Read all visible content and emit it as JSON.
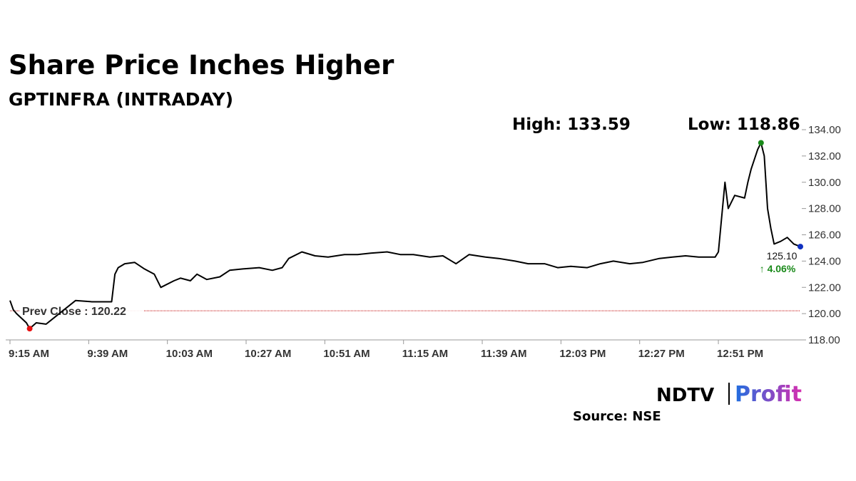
{
  "chart_data": {
    "type": "line",
    "title": "Share Price Inches Higher",
    "subtitle": "GPTINFRA (INTRADAY)",
    "high_label": "High: 133.59",
    "low_label": "Low: 118.86",
    "x": [
      "9:15 AM",
      "9:16 AM",
      "9:17 AM",
      "9:20 AM",
      "9:21 AM",
      "9:23 AM",
      "9:26 AM",
      "9:27 AM",
      "9:35 AM",
      "9:40 AM",
      "9:46 AM",
      "9:47 AM",
      "9:48 AM",
      "9:50 AM",
      "9:53 AM",
      "9:56 AM",
      "9:59 AM",
      "10:01 AM",
      "10:05 AM",
      "10:07 AM",
      "10:10 AM",
      "10:12 AM",
      "10:15 AM",
      "10:19 AM",
      "10:22 AM",
      "10:26 AM",
      "10:31 AM",
      "10:35 AM",
      "10:38 AM",
      "10:40 AM",
      "10:44 AM",
      "10:48 AM",
      "10:52 AM",
      "10:57 AM",
      "11:01 AM",
      "11:05 AM",
      "11:10 AM",
      "11:14 AM",
      "11:18 AM",
      "11:23 AM",
      "11:27 AM",
      "11:31 AM",
      "11:35 AM",
      "11:40 AM",
      "11:44 AM",
      "11:49 AM",
      "11:53 AM",
      "11:58 AM",
      "12:02 PM",
      "12:06 PM",
      "12:11 PM",
      "12:15 PM",
      "12:19 PM",
      "12:24 PM",
      "12:28 PM",
      "12:33 PM",
      "12:37 PM",
      "12:41 PM",
      "12:45 PM",
      "12:50 PM",
      "12:51 PM",
      "12:53 PM",
      "12:54 PM",
      "12:56 PM",
      "12:59 PM",
      "1:00 PM",
      "1:01 PM",
      "1:03 PM",
      "1:04 PM",
      "1:05 PM",
      "1:06 PM",
      "1:07 PM",
      "1:08 PM",
      "1:10 PM",
      "1:12 PM",
      "1:14 PM",
      "1:16 PM"
    ],
    "series": [
      {
        "color": "#000000",
        "values": [
          121.0,
          120.3,
          120.0,
          119.3,
          118.86,
          119.3,
          119.2,
          119.4,
          121.0,
          120.9,
          120.9,
          123.0,
          123.5,
          123.8,
          123.9,
          123.4,
          123.0,
          122.0,
          122.5,
          122.7,
          122.5,
          123.0,
          122.6,
          122.8,
          123.3,
          123.4,
          123.5,
          123.3,
          123.5,
          124.2,
          124.7,
          124.4,
          124.3,
          124.5,
          124.5,
          124.6,
          124.7,
          124.5,
          124.5,
          124.3,
          124.4,
          123.8,
          124.5,
          124.3,
          124.2,
          124.0,
          123.8,
          123.8,
          123.5,
          123.6,
          123.5,
          123.8,
          124.0,
          123.8,
          123.9,
          124.2,
          124.3,
          124.4,
          124.3,
          124.3,
          124.7,
          130.0,
          128.0,
          129.0,
          128.8,
          130.0,
          131.0,
          132.5,
          133.0,
          132.0,
          128.0,
          126.5,
          125.3,
          125.5,
          125.8,
          125.3,
          125.1
        ]
      }
    ],
    "xlim": [
      "9:15 AM",
      "1:16 PM"
    ],
    "xticks": [
      "9:15 AM",
      "9:39 AM",
      "10:03 AM",
      "10:27 AM",
      "10:51 AM",
      "11:15 AM",
      "11:39 AM",
      "12:03 PM",
      "12:27 PM",
      "12:51 PM"
    ],
    "ylim": [
      118,
      134
    ],
    "yticks": [
      {
        "value": 118,
        "label": "118.00"
      },
      {
        "value": 120,
        "label": "120.00"
      },
      {
        "value": 122,
        "label": "122.00"
      },
      {
        "value": 124,
        "label": "124.00"
      },
      {
        "value": 126,
        "label": "126.00"
      },
      {
        "value": 128,
        "label": "128.00"
      },
      {
        "value": 130,
        "label": "130.00"
      },
      {
        "value": 132,
        "label": "132.00"
      },
      {
        "value": 134,
        "label": "134.00"
      }
    ],
    "prev_close": {
      "value": 120.22,
      "label": "Prev Close : 120.22"
    },
    "prev_close_color": "#c00000",
    "last_value": {
      "value": 125.1,
      "label": "125.10"
    },
    "change_label": "↑ 4.06%",
    "change_color": "#1a8a1a",
    "low_marker_color": "#e81010",
    "high_marker_color": "#1a8a1a",
    "last_marker_color": "#1030c0",
    "logo": {
      "brand": "NDTV",
      "product": "Profit"
    },
    "source": "Source: NSE"
  }
}
